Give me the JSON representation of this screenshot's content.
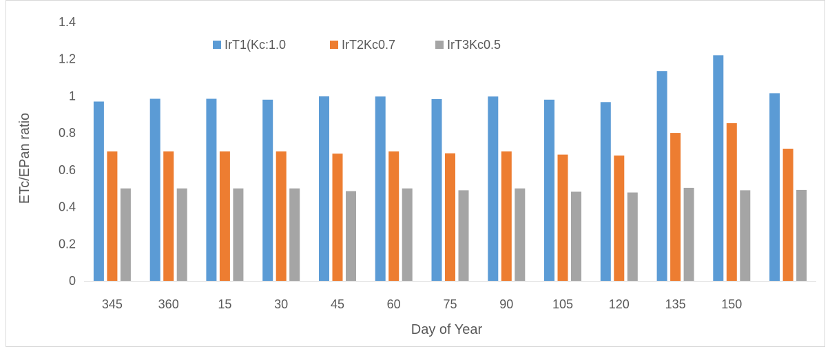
{
  "chart_data": {
    "type": "bar",
    "title": "",
    "xlabel": "Day of Year",
    "ylabel": "ETc/EPan ratio",
    "ylim": [
      0,
      1.4
    ],
    "yticks": [
      "0",
      "0.2",
      "0.4",
      "0.6",
      "0.8",
      "1",
      "1.2",
      "1.4"
    ],
    "categories": [
      "345",
      "360",
      "15",
      "30",
      "45",
      "60",
      "75",
      "90",
      "105",
      "120",
      "135",
      "150",
      ""
    ],
    "grid": false,
    "legend_position": "top",
    "series": [
      {
        "name": "IrT1(Kc:1.0",
        "color": "#5b9bd5",
        "values": [
          0.97,
          0.985,
          0.985,
          0.98,
          0.998,
          0.997,
          0.983,
          0.997,
          0.98,
          0.967,
          1.135,
          1.22,
          1.015
        ]
      },
      {
        "name": "IrT2Kc0.7",
        "color": "#ed7d31",
        "values": [
          0.7,
          0.7,
          0.7,
          0.7,
          0.688,
          0.7,
          0.69,
          0.7,
          0.683,
          0.678,
          0.8,
          0.853,
          0.715
        ]
      },
      {
        "name": "IrT3Kc0.5",
        "color": "#a5a5a5",
        "values": [
          0.5,
          0.5,
          0.5,
          0.5,
          0.485,
          0.5,
          0.49,
          0.5,
          0.482,
          0.478,
          0.503,
          0.49,
          0.492
        ]
      }
    ]
  }
}
